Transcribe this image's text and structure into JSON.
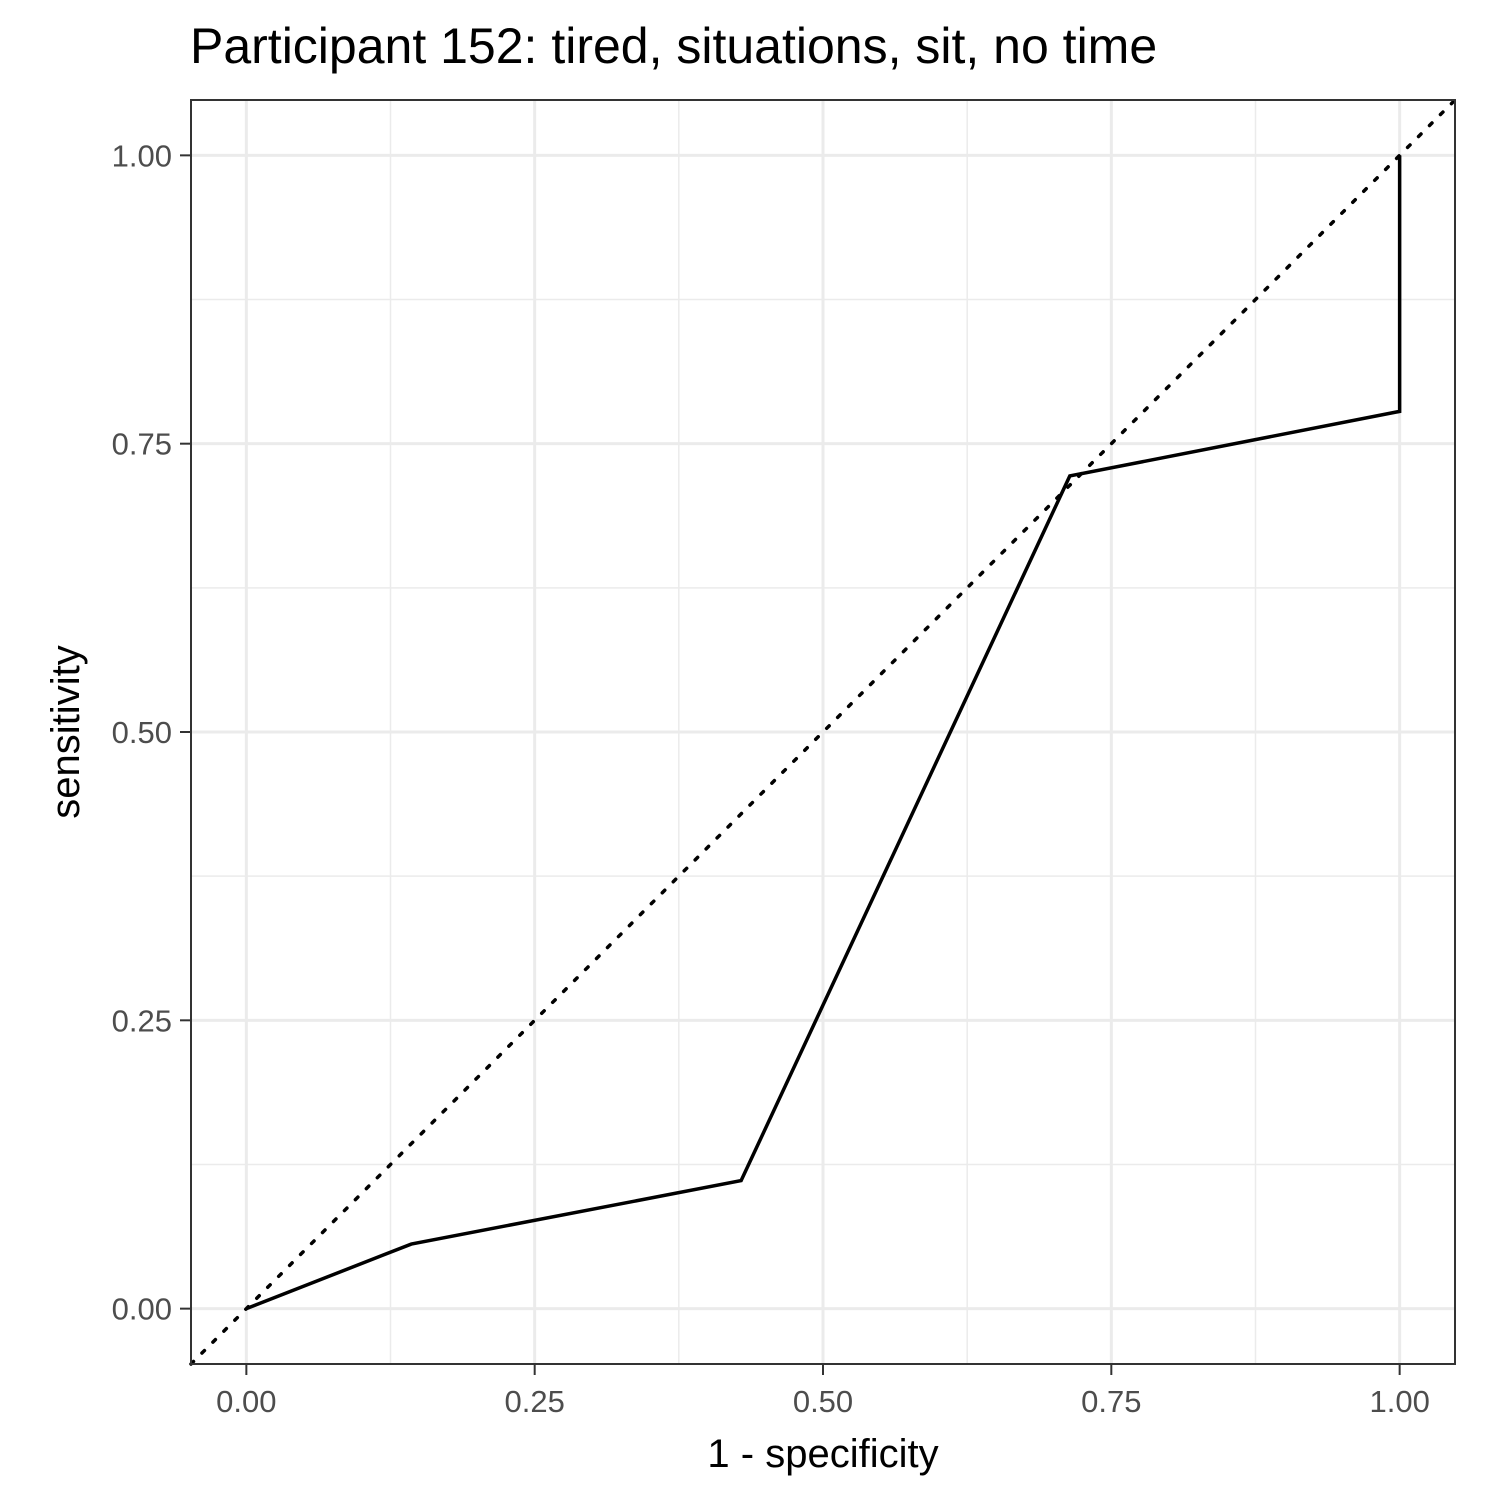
{
  "chart_data": {
    "type": "line",
    "title": "Participant 152: tired, situations, sit, no time",
    "xlabel": "1 - specificity",
    "ylabel": "sensitivity",
    "xlim": [
      -0.048,
      1.048
    ],
    "ylim": [
      -0.048,
      1.048
    ],
    "x_ticks": [
      "0.00",
      "0.25",
      "0.50",
      "0.75",
      "1.00"
    ],
    "y_ticks": [
      "0.00",
      "0.25",
      "0.50",
      "0.75",
      "1.00"
    ],
    "grid": true,
    "series": [
      {
        "style": "solid",
        "x": [
          0.0,
          0.143,
          0.429,
          0.714,
          1.0,
          1.0
        ],
        "y": [
          0.0,
          0.056,
          0.111,
          0.722,
          0.778,
          1.0
        ]
      }
    ],
    "reference_line": {
      "style": "dotted",
      "slope": 1,
      "intercept": 0
    },
    "colors": {
      "line": "#000000",
      "grid": "#ebebeb",
      "panel_border": "#333333",
      "tick_text": "#4d4d4d"
    }
  }
}
